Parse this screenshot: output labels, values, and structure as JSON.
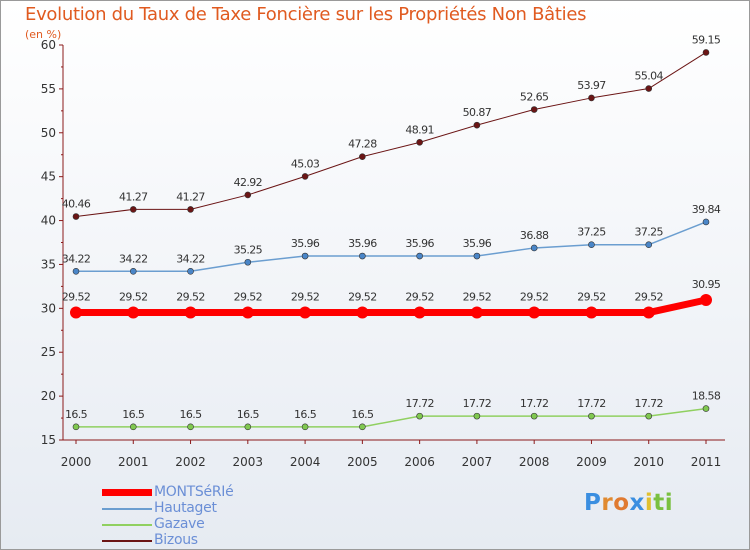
{
  "chart_data": {
    "type": "line",
    "title": "Evolution du Taux de Taxe Foncière sur les Propriétés Non Bâties",
    "subtitle": "(en %)",
    "x": [
      "2000",
      "2001",
      "2002",
      "2003",
      "2004",
      "2005",
      "2006",
      "2007",
      "2008",
      "2009",
      "2010",
      "2011"
    ],
    "ylim": [
      15,
      60
    ],
    "yticks": [
      "15",
      "20",
      "25",
      "30",
      "35",
      "40",
      "45",
      "50",
      "55",
      "60"
    ],
    "series": [
      {
        "name": "Bizous",
        "color": "#6b1515",
        "fill": "#6b1515",
        "stroke_width": 1,
        "values": [
          40.46,
          41.27,
          41.27,
          42.92,
          45.03,
          47.28,
          48.91,
          50.87,
          52.65,
          53.97,
          55.04,
          59.15
        ],
        "labels": [
          "40.46",
          "41.27",
          "41.27",
          "42.92",
          "45.03",
          "47.28",
          "48.91",
          "50.87",
          "52.65",
          "53.97",
          "55.04",
          "59.15"
        ]
      },
      {
        "name": "Hautaget",
        "color": "#6b9ed0",
        "fill": "#4a86c8",
        "stroke_width": 1.5,
        "values": [
          34.22,
          34.22,
          34.22,
          35.25,
          35.96,
          35.96,
          35.96,
          35.96,
          36.88,
          37.25,
          37.25,
          39.84
        ],
        "labels": [
          "34.22",
          "34.22",
          "34.22",
          "35.25",
          "35.96",
          "35.96",
          "35.96",
          "35.96",
          "36.88",
          "37.25",
          "37.25",
          "39.84"
        ]
      },
      {
        "name": "MONTSéRIé",
        "color": "#ff0000",
        "fill": "#ff0000",
        "stroke_width": 7,
        "values": [
          29.52,
          29.52,
          29.52,
          29.52,
          29.52,
          29.52,
          29.52,
          29.52,
          29.52,
          29.52,
          29.52,
          30.95
        ],
        "labels": [
          "29.52",
          "29.52",
          "29.52",
          "29.52",
          "29.52",
          "29.52",
          "29.52",
          "29.52",
          "29.52",
          "29.52",
          "29.52",
          "30.95"
        ]
      },
      {
        "name": "Gazave",
        "color": "#90d060",
        "fill": "#80c850",
        "stroke_width": 1.5,
        "values": [
          16.5,
          16.5,
          16.5,
          16.5,
          16.5,
          16.5,
          17.72,
          17.72,
          17.72,
          17.72,
          17.72,
          18.58
        ],
        "labels": [
          "16.5",
          "16.5",
          "16.5",
          "16.5",
          "16.5",
          "16.5",
          "17.72",
          "17.72",
          "17.72",
          "17.72",
          "17.72",
          "18.58"
        ]
      }
    ]
  },
  "legend": [
    {
      "label": "MONTSéRIé",
      "color": "#ff0000"
    },
    {
      "label": "Hautaget",
      "color": "#6b9ed0"
    },
    {
      "label": "Gazave",
      "color": "#90d060"
    },
    {
      "label": "Bizous",
      "color": "#6b1515"
    }
  ],
  "logo": {
    "letters": [
      "P",
      "r",
      "o",
      "x",
      "i",
      "t",
      "i"
    ],
    "colors": [
      "#3a8ee0",
      "#e08a30",
      "#e07a30",
      "#3a8ee0",
      "#e0c030",
      "#7ac040",
      "#7ac040"
    ]
  }
}
